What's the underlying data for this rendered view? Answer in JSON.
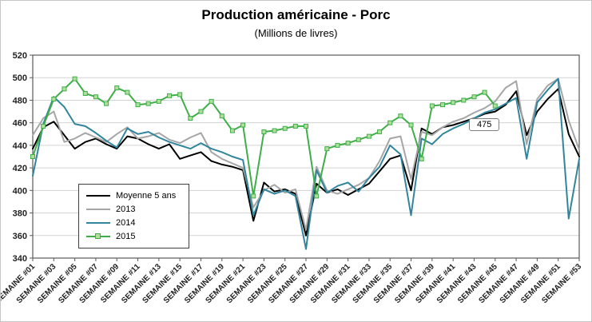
{
  "title": "Production américaine - Porc",
  "subtitle": "(Millions de livres)",
  "annotation": {
    "text": "475",
    "series": "2015",
    "week": 45,
    "value": 475
  },
  "colors": {
    "background": "#ffffff",
    "grid": "#d3d3d3",
    "axis": "#595959",
    "mean": "#000000",
    "y2013": "#a6a6a6",
    "y2014": "#31859c",
    "y2015": "#3fae49",
    "y2015_marker_fill": "#aee09b"
  },
  "chart_data": {
    "type": "line",
    "title": "Production américaine - Porc",
    "subtitle": "(Millions de livres)",
    "xlabel": "",
    "ylabel": "",
    "x_unit": "semaine",
    "x_range": [
      1,
      53
    ],
    "x_tick_weeks": [
      1,
      3,
      5,
      7,
      9,
      11,
      13,
      15,
      17,
      19,
      21,
      23,
      25,
      27,
      29,
      31,
      33,
      35,
      37,
      39,
      41,
      43,
      45,
      47,
      49,
      51,
      53
    ],
    "x_tick_labels": [
      "SEMAINE #01",
      "SEMAINE #03",
      "SEMAINE #05",
      "SEMAINE #07",
      "SEMAINE #09",
      "SEMAINE #11",
      "SEMAINE #13",
      "SEMAINE #15",
      "SEMAINE #17",
      "SEMAINE #19",
      "SEMAINE #21",
      "SEMAINE #23",
      "SEMAINE #25",
      "SEMAINE #27",
      "SEMAINE #29",
      "SEMAINE #31",
      "SEMAINE #33",
      "SEMAINE #35",
      "SEMAINE #37",
      "SEMAINE #39",
      "SEMAINE #41",
      "SEMAINE #43",
      "SEMAINE #45",
      "SEMAINE #47",
      "SEMAINE #49",
      "SEMAINE #51",
      "SEMAINE #53"
    ],
    "ylim": [
      340,
      520
    ],
    "y_ticks": [
      340,
      360,
      380,
      400,
      420,
      440,
      460,
      480,
      500,
      520
    ],
    "grid": true,
    "legend_position": "inside-left",
    "series": [
      {
        "name": "Moyenne 5 ans",
        "color": "#000000",
        "width": 2,
        "start_week": 1,
        "values": [
          437,
          456,
          461,
          449,
          437,
          443,
          446,
          441,
          437,
          448,
          446,
          441,
          437,
          441,
          428,
          431,
          434,
          426,
          423,
          421,
          418,
          373,
          407,
          399,
          401,
          397,
          360,
          406,
          398,
          401,
          396,
          401,
          406,
          417,
          428,
          431,
          400,
          455,
          450,
          456,
          458,
          461,
          464,
          468,
          470,
          476,
          488,
          449,
          470,
          481,
          490,
          450,
          430
        ]
      },
      {
        "name": "2013",
        "color": "#a6a6a6",
        "width": 2,
        "start_week": 1,
        "values": [
          449,
          464,
          470,
          443,
          446,
          451,
          447,
          443,
          450,
          456,
          446,
          448,
          451,
          445,
          442,
          447,
          451,
          434,
          428,
          424,
          420,
          385,
          400,
          405,
          398,
          401,
          365,
          421,
          400,
          397,
          401,
          405,
          411,
          426,
          446,
          448,
          410,
          452,
          449,
          456,
          461,
          464,
          469,
          473,
          479,
          491,
          497,
          441,
          481,
          493,
          499,
          462,
          436
        ]
      },
      {
        "name": "2014",
        "color": "#31859c",
        "width": 2,
        "start_week": 1,
        "values": [
          413,
          459,
          483,
          474,
          459,
          457,
          451,
          444,
          438,
          455,
          450,
          452,
          447,
          443,
          440,
          437,
          442,
          437,
          434,
          430,
          427,
          378,
          401,
          397,
          400,
          395,
          348,
          418,
          398,
          404,
          407,
          399,
          411,
          421,
          440,
          432,
          378,
          446,
          441,
          450,
          455,
          459,
          464,
          469,
          472,
          477,
          482,
          428,
          478,
          489,
          499,
          375,
          428
        ]
      },
      {
        "name": "2015",
        "color": "#3fae49",
        "width": 2,
        "marker": "square",
        "marker_fill": "#aee09b",
        "start_week": 1,
        "values": [
          430,
          457,
          481,
          490,
          499,
          486,
          483,
          477,
          491,
          487,
          476,
          477,
          479,
          484,
          485,
          464,
          470,
          479,
          466,
          453,
          458,
          395,
          452,
          453,
          455,
          457,
          457,
          395,
          437,
          440,
          442,
          445,
          448,
          452,
          460,
          466,
          458,
          428,
          475,
          476,
          478,
          480,
          483,
          487,
          475
        ]
      }
    ],
    "annotation": {
      "text": "475",
      "series": "2015",
      "week": 45,
      "value": 475
    }
  }
}
